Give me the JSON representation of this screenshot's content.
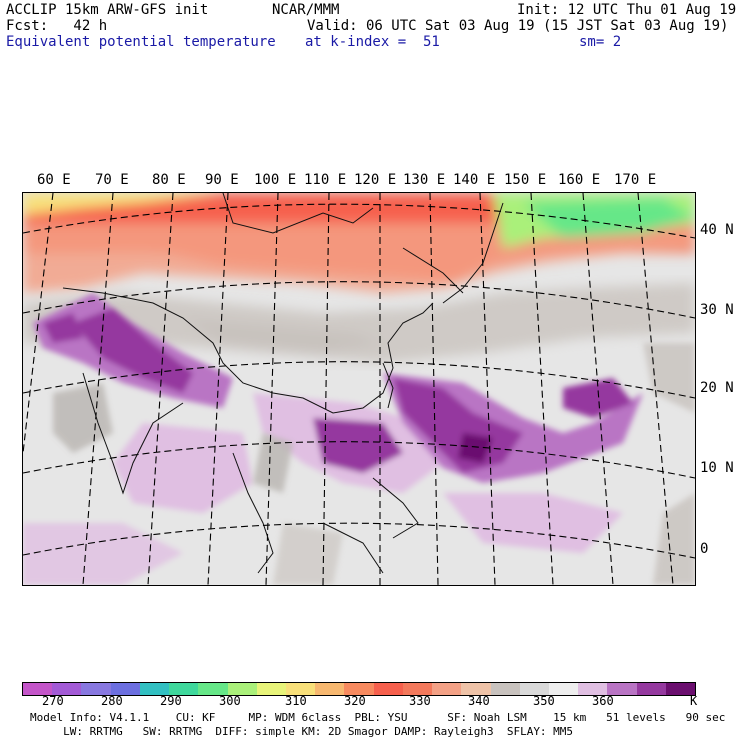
{
  "header": {
    "line1_left": "ACCLIP 15km ARW-GFS init",
    "line1_center": "NCAR/MMM",
    "line1_right": "Init: 12 UTC Thu 01 Aug 19",
    "line2_left": "Fcst:   42 h",
    "line2_right": "Valid: 06 UTC Sat 03 Aug 19 (15 JST Sat 03 Aug 19)",
    "line3_left": "Equivalent potential temperature",
    "line3_center": "at k-index =  51",
    "line3_right": "sm= 2"
  },
  "map": {
    "longitude_labels": [
      "60 E",
      "70 E",
      "80 E",
      "90 E",
      "100 E",
      "110 E",
      "120 E",
      "130 E",
      "140 E",
      "150 E",
      "160 E",
      "170 E"
    ],
    "latitude_labels": [
      "40 N",
      "30 N",
      "20 N",
      "10 N",
      "0"
    ]
  },
  "colorbar": {
    "unit": "K",
    "tick_labels": [
      "270",
      "280",
      "290",
      "300",
      "310",
      "320",
      "330",
      "340",
      "350",
      "360"
    ],
    "colors": [
      "#c455c9",
      "#a35ad6",
      "#8878e0",
      "#6c6fe0",
      "#32c0c2",
      "#3fd89c",
      "#66e788",
      "#aaf07a",
      "#e8f47a",
      "#f8e07a",
      "#f7b870",
      "#f78a5f",
      "#f6604d",
      "#f3795c",
      "#f3a186",
      "#efc3a8",
      "#c8c2be",
      "#d9d9d9",
      "#eeeeee",
      "#e0bfe2",
      "#b974c4",
      "#95399f",
      "#6b0f6f"
    ]
  },
  "footer": {
    "line1": "Model Info: V4.1.1    CU: KF     MP: WDM 6class  PBL: YSU      SF: Noah LSM    15 km   51 levels   90 sec",
    "line2": "     LW: RRTMG   SW: RRTMG  DIFF: simple KM: 2D Smagor DAMP: Rayleigh3  SFLAY: MM5"
  }
}
